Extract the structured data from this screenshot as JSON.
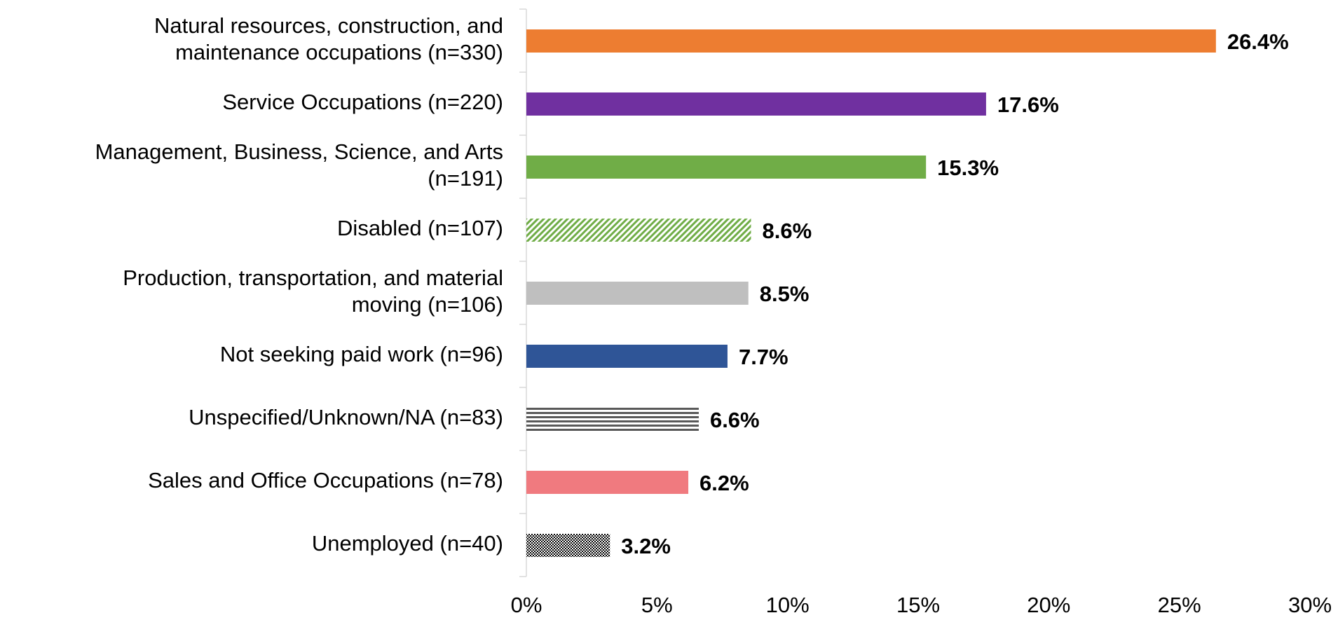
{
  "chart_data": {
    "type": "hbar",
    "categories": [
      "Natural resources, construction, and\nmaintenance occupations (n=330)",
      "Service Occupations (n=220)",
      "Management, Business, Science, and Arts\n(n=191)",
      "Disabled (n=107)",
      "Production, transportation, and material\nmoving (n=106)",
      "Not seeking paid work (n=96)",
      "Unspecified/Unknown/NA (n=83)",
      "Sales and Office Occupations (n=78)",
      "Unemployed (n=40)"
    ],
    "values": [
      26.4,
      17.6,
      15.3,
      8.6,
      8.5,
      7.7,
      6.6,
      6.2,
      3.2
    ],
    "value_labels": [
      "26.4%",
      "17.6%",
      "15.3%",
      "8.6%",
      "8.5%",
      "7.7%",
      "6.6%",
      "6.2%",
      "3.2%"
    ],
    "colors": [
      "#ED7D31",
      "#7030A0",
      "#70AD47",
      "#70AD47",
      "#BFBFBF",
      "#2F5597",
      "#595959",
      "#F07A7F",
      "#000000"
    ],
    "patterns": [
      "solid",
      "solid",
      "solid",
      "diagonal",
      "solid",
      "solid",
      "horizontal",
      "solid",
      "checker"
    ],
    "xlim": [
      0,
      30
    ],
    "xticks": [
      {
        "value": 0,
        "label": "0%"
      },
      {
        "value": 5,
        "label": "5%"
      },
      {
        "value": 10,
        "label": "10%"
      },
      {
        "value": 15,
        "label": "15%"
      },
      {
        "value": 20,
        "label": "20%"
      },
      {
        "value": 25,
        "label": "25%"
      },
      {
        "value": 30,
        "label": "30%"
      }
    ]
  }
}
